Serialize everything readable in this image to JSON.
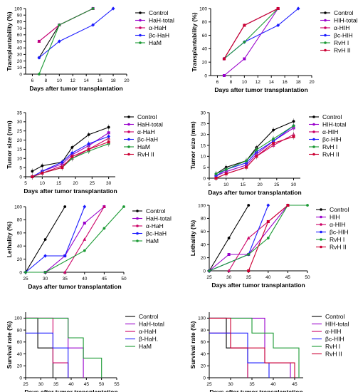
{
  "chart_data": [
    {
      "type": "line",
      "xlabel": "Days after tumor transplantation",
      "ylabel": "Transplantability (%)",
      "xlim": [
        5,
        20
      ],
      "ylim": [
        0,
        100
      ],
      "xticks": [
        6,
        8,
        10,
        12,
        14,
        16,
        18,
        20
      ],
      "yticks": [
        0,
        10,
        20,
        30,
        40,
        50,
        60,
        70,
        80,
        90,
        100
      ],
      "grid": false,
      "legend_position": "right",
      "series": [
        {
          "name": "Control",
          "color": "#000000",
          "marker": "circle",
          "x": [
            7,
            10,
            15
          ],
          "y": [
            25,
            75,
            100
          ]
        },
        {
          "name": "HaH-total",
          "color": "#9900cc",
          "marker": "square",
          "x": [
            7,
            10,
            15
          ],
          "y": [
            50,
            75,
            100
          ]
        },
        {
          "name": "α-HaH",
          "color": "#cc0066",
          "marker": "triangle",
          "x": [
            7,
            10,
            15
          ],
          "y": [
            50,
            75,
            100
          ]
        },
        {
          "name": "βc-HaH",
          "color": "#1a1aff",
          "marker": "diamond",
          "x": [
            7,
            10,
            15,
            18
          ],
          "y": [
            25,
            50,
            75,
            100
          ]
        },
        {
          "name": "HaM",
          "color": "#1a9933",
          "marker": "circle",
          "x": [
            7,
            10,
            15
          ],
          "y": [
            0,
            75,
            100
          ]
        }
      ]
    },
    {
      "type": "line",
      "xlabel": "Days after tumor transplantation",
      "ylabel": "Transplantability (%)",
      "xlim": [
        5,
        20
      ],
      "ylim": [
        0,
        100
      ],
      "xticks": [
        6,
        8,
        10,
        12,
        14,
        16,
        18,
        20
      ],
      "yticks": [
        0,
        20,
        40,
        60,
        80,
        100
      ],
      "grid": false,
      "legend_position": "right",
      "series": [
        {
          "name": "Control",
          "color": "#000000",
          "marker": "circle",
          "x": [
            7,
            10,
            15
          ],
          "y": [
            25,
            75,
            100
          ]
        },
        {
          "name": "HIH-total",
          "color": "#9900cc",
          "marker": "square",
          "x": [
            7,
            10,
            15
          ],
          "y": [
            0,
            25,
            100
          ]
        },
        {
          "name": "α-HIH",
          "color": "#cc0066",
          "marker": "triangle",
          "x": [
            7,
            10,
            15
          ],
          "y": [
            25,
            75,
            100
          ]
        },
        {
          "name": "βc-HIH",
          "color": "#1a1aff",
          "marker": "diamond",
          "x": [
            7,
            10,
            15,
            18
          ],
          "y": [
            25,
            50,
            75,
            100
          ]
        },
        {
          "name": "RvH I",
          "color": "#1a9933",
          "marker": "circle",
          "x": [
            7,
            10,
            15
          ],
          "y": [
            25,
            50,
            100
          ]
        },
        {
          "name": "RvH II",
          "color": "#cc0033",
          "marker": "square",
          "x": [
            7,
            10,
            15
          ],
          "y": [
            25,
            75,
            100
          ]
        }
      ]
    },
    {
      "type": "line",
      "xlabel": "Days after tumor transplantation",
      "ylabel": "Tumor size (mm)",
      "xlim": [
        5,
        32
      ],
      "ylim": [
        0,
        35
      ],
      "xticks": [
        5,
        10,
        15,
        20,
        25,
        30
      ],
      "yticks": [
        0,
        5,
        10,
        15,
        20,
        25,
        30,
        35
      ],
      "grid": false,
      "legend_position": "right",
      "error_bars": true,
      "series": [
        {
          "name": "Control",
          "color": "#000000",
          "marker": "circle",
          "x": [
            7,
            10,
            16,
            19,
            24,
            30
          ],
          "y": [
            3,
            6,
            8,
            16,
            23,
            27
          ]
        },
        {
          "name": "HaH-total",
          "color": "#9900cc",
          "marker": "square",
          "x": [
            7,
            10,
            16,
            19,
            24,
            30
          ],
          "y": [
            0,
            3,
            7,
            12,
            17,
            24
          ]
        },
        {
          "name": "α-HaH",
          "color": "#cc0066",
          "marker": "triangle",
          "x": [
            7,
            10,
            16,
            19,
            24,
            30
          ],
          "y": [
            0,
            2,
            6,
            10,
            15,
            21
          ]
        },
        {
          "name": "βc-HaH",
          "color": "#1a1aff",
          "marker": "diamond",
          "x": [
            7,
            10,
            16,
            19,
            24,
            30
          ],
          "y": [
            0,
            3,
            8,
            13,
            18,
            22
          ]
        },
        {
          "name": "HaM",
          "color": "#1a9933",
          "marker": "circle",
          "x": [
            7,
            10,
            16,
            19,
            24,
            30
          ],
          "y": [
            0,
            2,
            5,
            10,
            14,
            18
          ]
        },
        {
          "name": "RvH II",
          "color": "#cc0033",
          "marker": "square",
          "x": [
            7,
            10,
            16,
            19,
            24,
            30
          ],
          "y": [
            0,
            2,
            5,
            11,
            15,
            19
          ]
        }
      ]
    },
    {
      "type": "line",
      "xlabel": "Days after tumor transplantation",
      "ylabel": "Tumor size (mm)",
      "xlim": [
        5,
        32
      ],
      "ylim": [
        0,
        30
      ],
      "xticks": [
        5,
        10,
        15,
        20,
        25,
        30
      ],
      "yticks": [
        0,
        5,
        10,
        15,
        20,
        25,
        30
      ],
      "grid": false,
      "legend_position": "right",
      "error_bars": true,
      "series": [
        {
          "name": "Control",
          "color": "#000000",
          "marker": "circle",
          "x": [
            7,
            10,
            16,
            19,
            24,
            30
          ],
          "y": [
            2,
            5,
            8,
            14,
            22,
            26
          ]
        },
        {
          "name": "HIH-total",
          "color": "#9900cc",
          "marker": "square",
          "x": [
            7,
            10,
            16,
            19,
            24,
            30
          ],
          "y": [
            1,
            3,
            6,
            11,
            17,
            23
          ]
        },
        {
          "name": "α-HIH",
          "color": "#cc0066",
          "marker": "triangle",
          "x": [
            7,
            10,
            16,
            19,
            24,
            30
          ],
          "y": [
            0,
            2,
            5,
            10,
            15,
            20
          ]
        },
        {
          "name": "βc-HIH",
          "color": "#1a1aff",
          "marker": "diamond",
          "x": [
            7,
            10,
            16,
            19,
            24,
            30
          ],
          "y": [
            1,
            4,
            7,
            12,
            17,
            24
          ]
        },
        {
          "name": "RvH I",
          "color": "#1a9933",
          "marker": "circle",
          "x": [
            7,
            10,
            16,
            19,
            24,
            30
          ],
          "y": [
            2,
            4,
            8,
            13,
            18,
            24
          ]
        },
        {
          "name": "RvH II",
          "color": "#cc0033",
          "marker": "square",
          "x": [
            7,
            10,
            16,
            19,
            24,
            30
          ],
          "y": [
            0,
            2,
            5,
            10,
            16,
            19
          ]
        }
      ]
    },
    {
      "type": "line",
      "xlabel": "Days after tumor transplantation",
      "ylabel": "Lethality (%)",
      "xlim": [
        25,
        50
      ],
      "ylim": [
        0,
        100
      ],
      "xticks": [
        25,
        30,
        35,
        40,
        45,
        50
      ],
      "yticks": [
        0,
        20,
        40,
        60,
        80,
        100
      ],
      "grid": false,
      "legend_position": "right",
      "series": [
        {
          "name": "Control",
          "color": "#000000",
          "marker": "circle",
          "x": [
            25,
            30,
            35
          ],
          "y": [
            0,
            50,
            100
          ]
        },
        {
          "name": "HaH-total",
          "color": "#9900cc",
          "marker": "square",
          "x": [
            30,
            35,
            40,
            45
          ],
          "y": [
            0,
            25,
            75,
            100
          ]
        },
        {
          "name": "α-HaH",
          "color": "#cc0066",
          "marker": "triangle",
          "x": [
            35,
            40,
            45
          ],
          "y": [
            0,
            50,
            100
          ]
        },
        {
          "name": "βc-HaH",
          "color": "#1a1aff",
          "marker": "diamond",
          "x": [
            25,
            30,
            35,
            40
          ],
          "y": [
            0,
            25,
            25,
            100
          ]
        },
        {
          "name": "HaM",
          "color": "#1a9933",
          "marker": "circle",
          "x": [
            25,
            30,
            40,
            45,
            50
          ],
          "y": [
            0,
            0,
            33,
            67,
            100
          ]
        }
      ]
    },
    {
      "type": "line",
      "xlabel": "Days after tumor transplantation",
      "ylabel": "Lethality (%)",
      "xlim": [
        25,
        50
      ],
      "ylim": [
        0,
        100
      ],
      "xticks": [
        25,
        30,
        35,
        40,
        45,
        50
      ],
      "yticks": [
        0,
        20,
        40,
        60,
        80,
        100
      ],
      "grid": false,
      "legend_position": "right",
      "series": [
        {
          "name": "Control",
          "color": "#000000",
          "marker": "circle",
          "x": [
            25,
            30,
            35
          ],
          "y": [
            0,
            50,
            100
          ]
        },
        {
          "name": "HIH",
          "color": "#9900cc",
          "marker": "square",
          "x": [
            25,
            30,
            35,
            45
          ],
          "y": [
            0,
            25,
            25,
            100
          ]
        },
        {
          "name": "α-HIH",
          "color": "#cc0066",
          "marker": "triangle",
          "x": [
            30,
            35,
            40,
            45
          ],
          "y": [
            0,
            50,
            75,
            100
          ]
        },
        {
          "name": "βc-HIH",
          "color": "#1a1aff",
          "marker": "diamond",
          "x": [
            25,
            35,
            40
          ],
          "y": [
            0,
            25,
            100
          ]
        },
        {
          "name": "RvH I",
          "color": "#1a9933",
          "marker": "circle",
          "x": [
            25,
            35,
            40,
            45,
            50
          ],
          "y": [
            0,
            25,
            50,
            100,
            100
          ]
        },
        {
          "name": "RvH II",
          "color": "#cc0033",
          "marker": "square",
          "x": [
            35,
            40,
            45
          ],
          "y": [
            0,
            75,
            100
          ]
        }
      ]
    },
    {
      "type": "line",
      "step": true,
      "xlabel": "Days after tumor transplantation",
      "ylabel": "Survival rate (%)",
      "xlim": [
        25,
        55
      ],
      "ylim": [
        0,
        110
      ],
      "xticks": [
        25,
        30,
        35,
        40,
        45,
        50,
        55
      ],
      "yticks": [
        0,
        20,
        40,
        60,
        80,
        100
      ],
      "grid": false,
      "legend_position": "right",
      "series": [
        {
          "name": "Control",
          "color": "#000000",
          "x": [
            25,
            29,
            29,
            34,
            34
          ],
          "y": [
            100,
            100,
            50,
            50,
            0
          ]
        },
        {
          "name": "HaH-total",
          "color": "#9900cc",
          "x": [
            25,
            39,
            39,
            44,
            44
          ],
          "y": [
            100,
            100,
            50,
            50,
            0
          ]
        },
        {
          "name": "α-HaH",
          "color": "#cc0066",
          "x": [
            25,
            34,
            34,
            39,
            39
          ],
          "y": [
            100,
            100,
            25,
            25,
            0
          ]
        },
        {
          "name": "β-HaH.",
          "color": "#1a1aff",
          "x": [
            25,
            34,
            34,
            39,
            39
          ],
          "y": [
            75,
            75,
            50,
            50,
            0
          ]
        },
        {
          "name": "HaM",
          "color": "#1a9933",
          "x": [
            25,
            39,
            39,
            44,
            44,
            50,
            50
          ],
          "y": [
            100,
            100,
            67,
            67,
            33,
            33,
            0
          ]
        }
      ]
    },
    {
      "type": "line",
      "step": true,
      "xlabel": "Days after tumor transplantation",
      "ylabel": "Survival rate (%)",
      "xlim": [
        25,
        47
      ],
      "ylim": [
        0,
        110
      ],
      "xticks": [
        25,
        30,
        35,
        40,
        45
      ],
      "yticks": [
        0,
        20,
        40,
        60,
        80,
        100
      ],
      "grid": false,
      "legend_position": "right",
      "series": [
        {
          "name": "Control",
          "color": "#000000",
          "x": [
            25,
            29,
            29,
            34,
            34
          ],
          "y": [
            100,
            100,
            50,
            50,
            0
          ]
        },
        {
          "name": "HIH-total",
          "color": "#9900cc",
          "x": [
            25,
            38,
            38,
            44,
            44
          ],
          "y": [
            100,
            100,
            25,
            25,
            0
          ]
        },
        {
          "name": "α-HIH",
          "color": "#cc0066",
          "x": [
            25,
            30,
            30,
            34,
            34
          ],
          "y": [
            75,
            75,
            50,
            50,
            0
          ]
        },
        {
          "name": "βc-HIH",
          "color": "#1a1aff",
          "x": [
            25,
            34,
            34,
            39,
            39
          ],
          "y": [
            75,
            75,
            25,
            25,
            0
          ]
        },
        {
          "name": "RvH I",
          "color": "#1a9933",
          "x": [
            25,
            35,
            35,
            40,
            40,
            46,
            46
          ],
          "y": [
            100,
            100,
            75,
            75,
            50,
            50,
            0
          ]
        },
        {
          "name": "RvH II",
          "color": "#cc0033",
          "x": [
            25,
            30,
            30,
            38,
            38,
            45,
            45
          ],
          "y": [
            100,
            100,
            50,
            50,
            25,
            25,
            0
          ]
        }
      ]
    }
  ]
}
